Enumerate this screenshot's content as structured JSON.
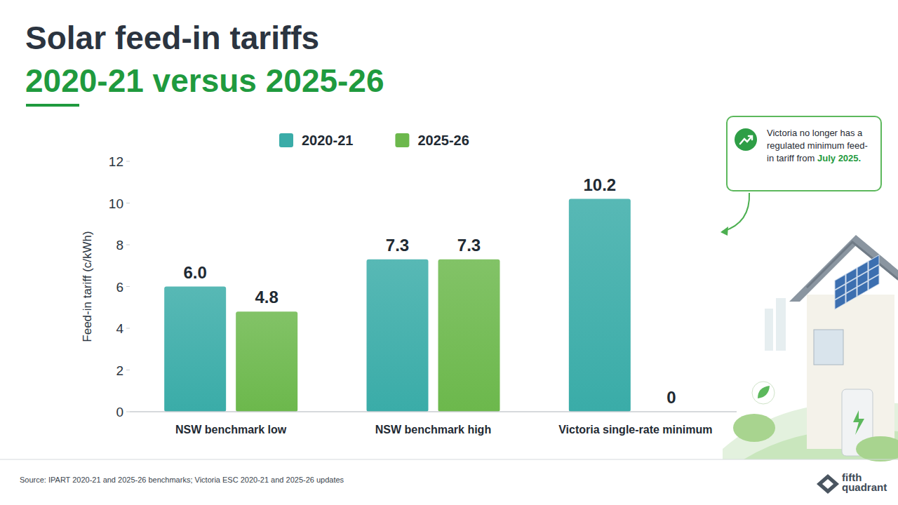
{
  "chart_data": {
    "type": "bar",
    "title": "Solar feed-in tariffs",
    "subtitle": "2020-21 versus 2025-26",
    "ylabel": "Feed-in tariff (c/kWh)",
    "categories": [
      "NSW benchmark low",
      "NSW benchmark high",
      "Victoria single-rate minimum"
    ],
    "series": [
      {
        "name": "2020-21",
        "color": "#3aaca8",
        "values": [
          6.0,
          7.3,
          10.2
        ],
        "value_labels": [
          "6.0",
          "7.3",
          "10.2"
        ]
      },
      {
        "name": "2025-26",
        "color": "#6cb84c",
        "values": [
          4.8,
          7.3,
          0
        ],
        "value_labels": [
          "4.8",
          "7.3",
          "0"
        ]
      }
    ],
    "ylim": [
      0,
      12
    ],
    "yticks": [
      0,
      2,
      4,
      6,
      8,
      10,
      12
    ],
    "grid": false,
    "legend": "top",
    "data_labels": true,
    "annotation": {
      "text": "Victoria no longer has a regulated minimum feed-in tariff from July 2025.",
      "highlight": "July 2025."
    },
    "source": "Source: IPART 2020-21 and 2025-26 benchmarks; Victoria ESC 2020-21 and 2025-26 updates",
    "logo": "fifth quadrant"
  }
}
